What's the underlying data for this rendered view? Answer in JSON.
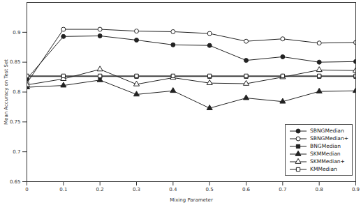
{
  "chart_data": {
    "type": "line",
    "xlabel": "Mixing Parameter",
    "ylabel": "Mean Accuracy on Test Set",
    "x": [
      0,
      0.1,
      0.2,
      0.3,
      0.4,
      0.5,
      0.6,
      0.7,
      0.8,
      0.9
    ],
    "xlim": [
      0,
      0.9
    ],
    "xticks": [
      0,
      0.1,
      0.2,
      0.3,
      0.4,
      0.5,
      0.6,
      0.7,
      0.8,
      0.9
    ],
    "ylim": [
      0.65,
      0.95
    ],
    "yticks": [
      0.65,
      0.7,
      0.75,
      0.8,
      0.85,
      0.9
    ],
    "grid": false,
    "legend": "lower right",
    "series": [
      {
        "name": "SBNGMedian",
        "color": "#222222",
        "marker": "circle",
        "values": [
          0.822,
          0.893,
          0.894,
          0.887,
          0.879,
          0.878,
          0.853,
          0.859,
          0.85,
          0.851
        ]
      },
      {
        "name": "SBNGMedian+",
        "color": "#222222",
        "marker": "circle-open",
        "values": [
          0.815,
          0.905,
          0.905,
          0.902,
          0.901,
          0.898,
          0.885,
          0.889,
          0.882,
          0.883
        ]
      },
      {
        "name": "BNGMedian",
        "color": "#222222",
        "marker": "square",
        "values": [
          0.826,
          0.826,
          0.826,
          0.826,
          0.826,
          0.826,
          0.826,
          0.826,
          0.826,
          0.826
        ]
      },
      {
        "name": "SKMMedian",
        "color": "#222222",
        "marker": "triangle",
        "values": [
          0.808,
          0.811,
          0.82,
          0.796,
          0.802,
          0.773,
          0.79,
          0.784,
          0.801,
          0.802
        ]
      },
      {
        "name": "SKMMedian+",
        "color": "#222222",
        "marker": "triangle-open",
        "values": [
          0.812,
          0.822,
          0.838,
          0.813,
          0.824,
          0.815,
          0.814,
          0.825,
          0.837,
          0.836
        ]
      },
      {
        "name": "KMMedian",
        "color": "#222222",
        "marker": "square-open",
        "values": [
          0.827,
          0.827,
          0.827,
          0.827,
          0.827,
          0.827,
          0.827,
          0.827,
          0.827,
          0.827
        ]
      }
    ]
  }
}
